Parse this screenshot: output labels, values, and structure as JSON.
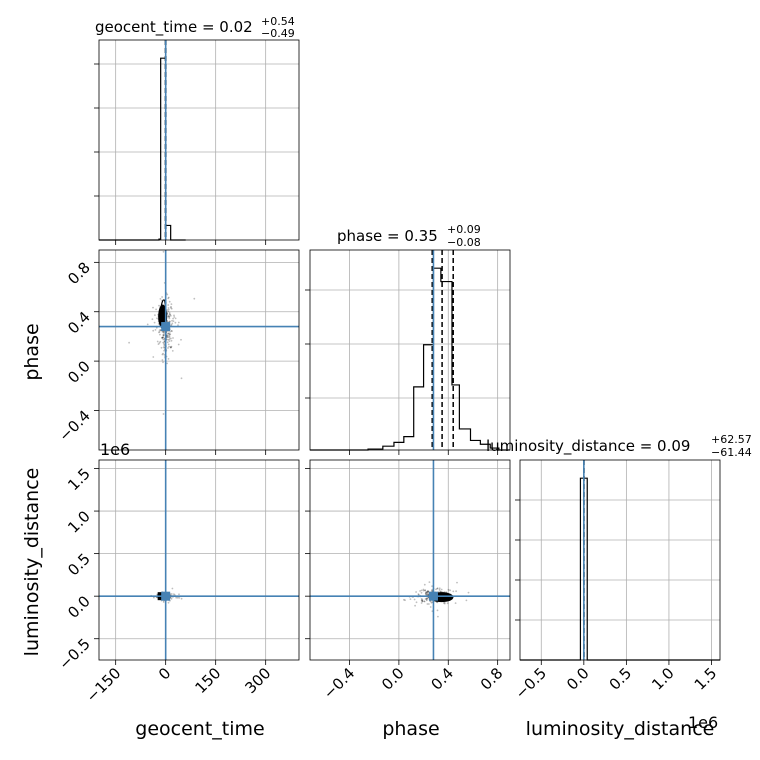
{
  "chart_data": {
    "type": "corner",
    "parameters": [
      "geocent_time",
      "phase",
      "luminosity_distance"
    ],
    "offset_labels": {
      "luminosity_distance": "1e6"
    },
    "colors": {
      "truth": "#4682b4",
      "hist": "#000000",
      "samples": "#000000"
    },
    "grid": true,
    "diagonal": [
      {
        "param": "geocent_time",
        "title_main": "geocent_time = 0.02",
        "title_sup": "+0.54",
        "title_sub": "−0.49",
        "xlim": [
          -200,
          400
        ],
        "xticks": [
          -150,
          0,
          150,
          300
        ],
        "bin_edges": [
          -200,
          -180,
          -160,
          -140,
          -120,
          -100,
          -80,
          -60,
          -40,
          -20,
          -15,
          0,
          15,
          35,
          60
        ],
        "counts": [
          0,
          0,
          0,
          0,
          0,
          0,
          0,
          0,
          0,
          0.005,
          1.0,
          0.08,
          0,
          0
        ],
        "quantiles": [
          -0.47,
          0.02,
          0.56
        ],
        "truth": 0.02
      },
      {
        "param": "phase",
        "title_main": "phase = 0.35",
        "title_sup": "+0.09",
        "title_sub": "−0.08",
        "xlim": [
          -0.72,
          0.9
        ],
        "xticks": [
          -0.4,
          0.0,
          0.4,
          0.8
        ],
        "bin_edges": [
          -0.72,
          -0.57,
          -0.41,
          -0.25,
          -0.13,
          -0.04,
          0.04,
          0.12,
          0.2,
          0.28,
          0.34,
          0.43,
          0.49,
          0.58,
          0.66,
          0.74,
          0.81,
          0.9
        ],
        "counts": [
          0,
          0,
          0,
          0.005,
          0.02,
          0.04,
          0.07,
          0.33,
          0.55,
          0.95,
          0.88,
          0.34,
          0.11,
          0.05,
          0.03,
          0.01,
          0
        ],
        "quantiles": [
          0.27,
          0.35,
          0.44
        ],
        "truth": 0.28
      },
      {
        "param": "luminosity_distance",
        "title_main": "luminosity_distance = 0.09",
        "title_sup": "+62.57",
        "title_sub": "−61.44",
        "xlim": [
          -0.75,
          1.6
        ],
        "xticks": [
          -0.5,
          0.0,
          0.5,
          1.0,
          1.5
        ],
        "bin_edges": [
          -0.75,
          -0.04,
          0.04,
          1.6
        ],
        "counts": [
          0,
          1.0,
          0
        ],
        "quantiles": [
          -0.0006,
          9e-07,
          0.0006
        ],
        "truth": 0.0
      }
    ],
    "off_diagonal": [
      {
        "x_param": "geocent_time",
        "y_param": "phase",
        "ylim": [
          -0.72,
          0.9
        ],
        "yticks": [
          -0.4,
          0.0,
          0.4,
          0.8
        ],
        "truth": [
          0.02,
          0.28
        ]
      },
      {
        "x_param": "geocent_time",
        "y_param": "luminosity_distance",
        "ylim": [
          -0.75,
          1.6
        ],
        "yticks": [
          -0.5,
          0.0,
          0.5,
          1.0,
          1.5
        ],
        "truth": [
          0.02,
          0.0
        ]
      },
      {
        "x_param": "phase",
        "y_param": "luminosity_distance",
        "ylim": [
          -0.75,
          1.6
        ],
        "yticks": [
          -0.5,
          0.0,
          0.5,
          1.0,
          1.5
        ],
        "truth": [
          0.28,
          0.0
        ]
      }
    ]
  }
}
